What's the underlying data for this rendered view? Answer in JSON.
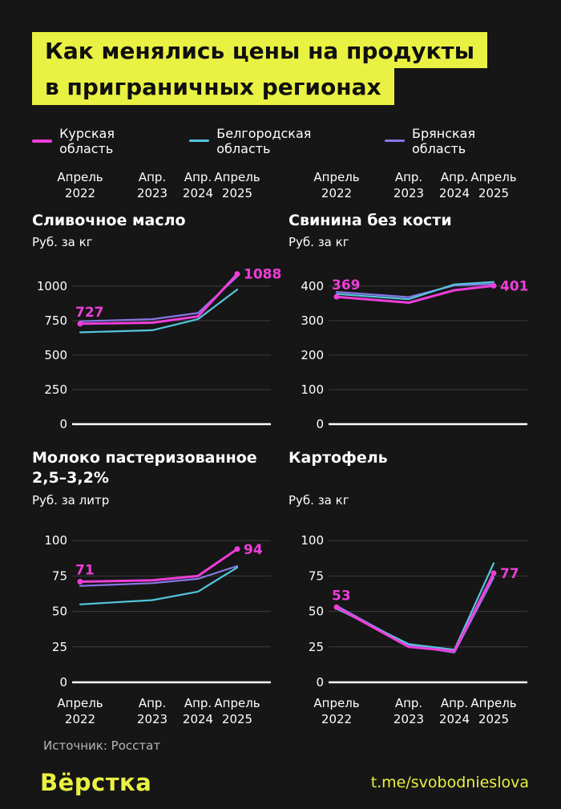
{
  "header": {
    "title_lines": [
      "Как менялись цены на продукты",
      "в приграничных регионах"
    ]
  },
  "legend": [
    {
      "label": "Курская область",
      "color": "#ee3ed9"
    },
    {
      "label": "Белгородская область",
      "color": "#53c6dc"
    },
    {
      "label": "Брянская область",
      "color": "#8678e6"
    }
  ],
  "x_axis": {
    "labels": [
      {
        "line1": "Апрель",
        "line2": "2022"
      },
      {
        "line1": "Апр.",
        "line2": "2023"
      },
      {
        "line1": "Апр.",
        "line2": "2024"
      },
      {
        "line1": "Апрель",
        "line2": "2025"
      }
    ]
  },
  "chart_data": [
    {
      "type": "line",
      "title": "Сливочное масло",
      "ylabel": "Руб. за кг",
      "categories": [
        "Апрель 2022",
        "Апр. 2023",
        "Апр. 2024",
        "Апрель 2025"
      ],
      "yticks": [
        0,
        250,
        500,
        750,
        1000
      ],
      "ymax": 1150,
      "ylim": [
        0,
        1150
      ],
      "series": [
        {
          "name": "Курская область",
          "values": [
            727,
            735,
            780,
            1088
          ]
        },
        {
          "name": "Белгородская область",
          "values": [
            665,
            680,
            760,
            975
          ]
        },
        {
          "name": "Брянская область",
          "values": [
            745,
            760,
            805,
            1070
          ]
        }
      ],
      "annotations": {
        "start": "727",
        "end": "1088"
      }
    },
    {
      "type": "line",
      "title": "Свинина без кости",
      "ylabel": "Руб. за кг",
      "categories": [
        "Апрель 2022",
        "Апр. 2023",
        "Апр. 2024",
        "Апрель 2025"
      ],
      "yticks": [
        0,
        100,
        200,
        300,
        400
      ],
      "ymax": 460,
      "ylim": [
        0,
        460
      ],
      "series": [
        {
          "name": "Курская область",
          "values": [
            369,
            352,
            388,
            401
          ]
        },
        {
          "name": "Белгородская область",
          "values": [
            377,
            362,
            405,
            412
          ]
        },
        {
          "name": "Брянская область",
          "values": [
            383,
            368,
            402,
            406
          ]
        }
      ],
      "annotations": {
        "start": "369",
        "end": "401"
      }
    },
    {
      "type": "line",
      "title": "Молоко пастеризованное 2,5–3,2%",
      "ylabel": "Руб. за литр",
      "categories": [
        "Апрель 2022",
        "Апр. 2023",
        "Апр. 2024",
        "Апрель 2025"
      ],
      "yticks": [
        0,
        25,
        50,
        75,
        100
      ],
      "ymax": 112,
      "ylim": [
        0,
        112
      ],
      "series": [
        {
          "name": "Курская область",
          "values": [
            71,
            72,
            75,
            94
          ]
        },
        {
          "name": "Белгородская область",
          "values": [
            55,
            58,
            64,
            81
          ]
        },
        {
          "name": "Брянская область",
          "values": [
            68,
            70,
            73,
            82
          ]
        }
      ],
      "annotations": {
        "start": "71",
        "end": "94"
      }
    },
    {
      "type": "line",
      "title": "Картофель",
      "ylabel": "Руб. за кг",
      "categories": [
        "Апрель 2022",
        "Апр. 2023",
        "Апр. 2024",
        "Апрель 2025"
      ],
      "yticks": [
        0,
        25,
        50,
        75,
        100
      ],
      "ymax": 112,
      "ylim": [
        0,
        112
      ],
      "series": [
        {
          "name": "Курская область",
          "values": [
            53,
            25,
            22,
            77
          ]
        },
        {
          "name": "Белгородская область",
          "values": [
            52,
            27,
            23,
            84
          ]
        },
        {
          "name": "Брянская область",
          "values": [
            54,
            26,
            21,
            74
          ]
        }
      ],
      "annotations": {
        "start": "53",
        "end": "77"
      }
    }
  ],
  "footer": {
    "source": "Источник: Росстат",
    "logo": "Вёрстка",
    "link": "t.me/svobodnieslova"
  },
  "colors": {
    "background": "#161616",
    "accent_yellow": "#e9f142",
    "magenta": "#ee3ed9",
    "cyan": "#53c6dc",
    "purple": "#8678e6",
    "grid": "#3c3c3c",
    "text": "#ffffff",
    "muted": "#b5b5b5"
  }
}
